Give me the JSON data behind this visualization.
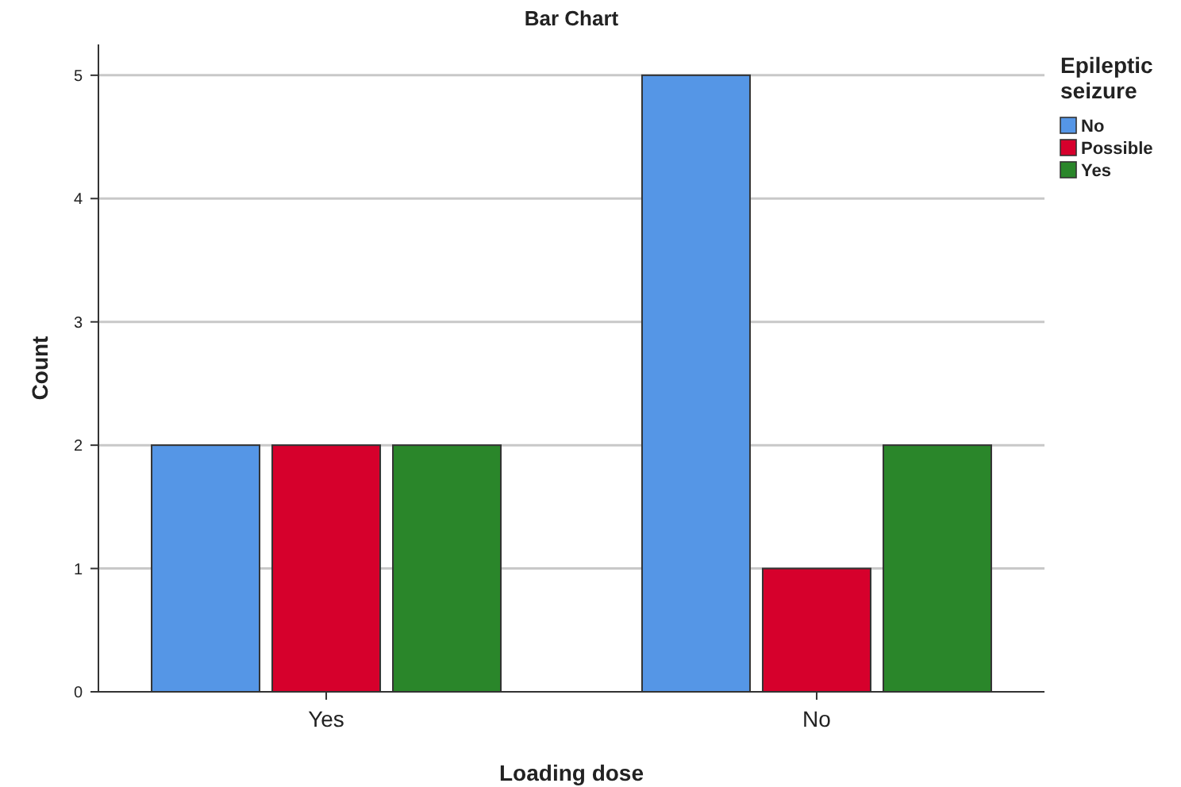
{
  "chart_data": {
    "type": "bar",
    "title": "Bar Chart",
    "xlabel": "Loading dose",
    "ylabel": "Count",
    "legend_title": "Epileptic seizure",
    "categories": [
      "Yes",
      "No"
    ],
    "series": [
      {
        "name": "No",
        "color": "#5596e6",
        "values": [
          2,
          5
        ]
      },
      {
        "name": "Possible",
        "color": "#d6002c",
        "values": [
          2,
          1
        ]
      },
      {
        "name": "Yes",
        "color": "#2a862a",
        "values": [
          2,
          2
        ]
      }
    ],
    "ylim": [
      0,
      5.25
    ],
    "yticks": [
      0,
      1,
      2,
      3,
      4,
      5
    ],
    "grid": "y",
    "legend": "top right"
  }
}
